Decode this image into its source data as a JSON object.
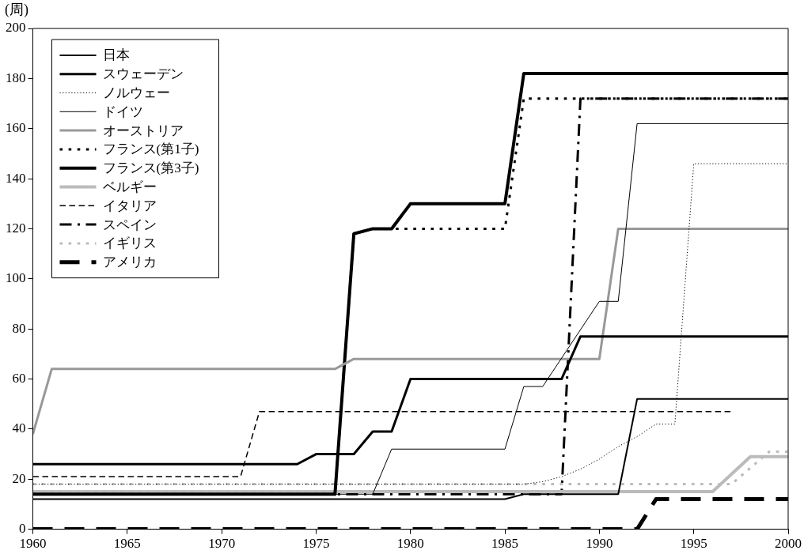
{
  "chart_data": {
    "type": "line",
    "ylabel": "(周)",
    "xlim": [
      1960,
      2000
    ],
    "xticks": [
      1960,
      1965,
      1970,
      1975,
      1980,
      1985,
      1990,
      1995,
      2000
    ],
    "ylim": [
      0,
      200
    ],
    "yticks": [
      0,
      20,
      40,
      60,
      80,
      100,
      120,
      140,
      160,
      180,
      200
    ],
    "grid": false,
    "legend": "top left",
    "marker": "none",
    "series": [
      {
        "name": "日本",
        "color": "#000000",
        "line_style": "solid",
        "x": [
          1960,
          1985,
          1986,
          1991,
          1992,
          2000
        ],
        "values": [
          12,
          12,
          14,
          14,
          52,
          52
        ]
      },
      {
        "name": "スウェーデン",
        "color": "#000000",
        "line_style": "solid",
        "x": [
          1960,
          1974,
          1975,
          1977,
          1978,
          1979,
          1980,
          1988,
          1989,
          2000
        ],
        "values": [
          26,
          26,
          30,
          30,
          39,
          39,
          60,
          60,
          77,
          77
        ]
      },
      {
        "name": "ノルウェー",
        "color": "#000000",
        "line_style": "dotted",
        "x": [
          1960,
          1986,
          1987,
          1988,
          1989,
          1990,
          1991,
          1992,
          1993,
          1994,
          1995,
          2000
        ],
        "values": [
          18,
          18,
          19,
          21,
          24,
          28,
          33,
          37,
          42,
          42,
          146,
          146
        ]
      },
      {
        "name": "ドイツ",
        "color": "#000000",
        "line_style": "solid",
        "x": [
          1960,
          1978,
          1979,
          1985,
          1986,
          1987,
          1990,
          1991,
          1992,
          2000
        ],
        "values": [
          14,
          14,
          32,
          32,
          57,
          57,
          91,
          91,
          162,
          162
        ]
      },
      {
        "name": "オーストリア",
        "color": "#999999",
        "line_style": "solid",
        "x": [
          1960,
          1961,
          1976,
          1977,
          1990,
          1991,
          2000
        ],
        "values": [
          38,
          64,
          64,
          68,
          68,
          120,
          120
        ]
      },
      {
        "name": "フランス(第1子)",
        "color": "#000000",
        "line_style": "dotted",
        "x": [
          1960,
          1976,
          1977,
          1978,
          1985,
          1986,
          2000
        ],
        "values": [
          14,
          14,
          118,
          120,
          120,
          172,
          172
        ]
      },
      {
        "name": "フランス(第3子)",
        "color": "#000000",
        "line_style": "solid",
        "x": [
          1960,
          1976,
          1977,
          1978,
          1979,
          1980,
          1985,
          1986,
          2000
        ],
        "values": [
          14,
          14,
          118,
          120,
          120,
          130,
          130,
          182,
          182
        ]
      },
      {
        "name": "ベルギー",
        "color": "#bbbbbb",
        "line_style": "solid",
        "x": [
          1960,
          1996,
          1998,
          2000
        ],
        "values": [
          15,
          15,
          29,
          29
        ]
      },
      {
        "name": "イタリア",
        "color": "#000000",
        "line_style": "dashed",
        "x": [
          1960,
          1971,
          1972,
          1997
        ],
        "values": [
          21,
          21,
          47,
          47
        ]
      },
      {
        "name": "スペイン",
        "color": "#000000",
        "line_style": "dashdot",
        "x": [
          1960,
          1988,
          1989,
          2000
        ],
        "values": [
          14,
          14,
          172,
          172
        ]
      },
      {
        "name": "イギリス",
        "color": "#bbbbbb",
        "line_style": "dotted",
        "x": [
          1960,
          1997,
          1999,
          2000
        ],
        "values": [
          18,
          18,
          31,
          31
        ]
      },
      {
        "name": "アメリカ",
        "color": "#000000",
        "line_style": "dashed",
        "x": [
          1960,
          1992,
          1993,
          2000
        ],
        "values": [
          0,
          0,
          12,
          12
        ]
      }
    ]
  }
}
